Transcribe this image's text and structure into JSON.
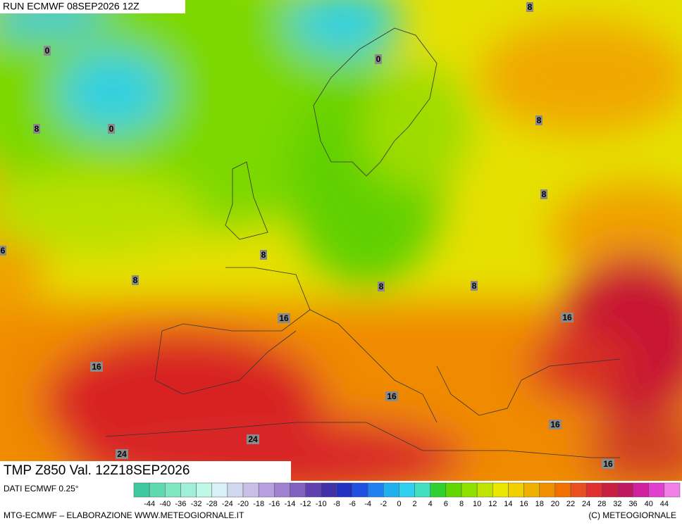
{
  "header": {
    "run": "RUN ECMWF 08SEP2026 12Z"
  },
  "title": "TMP Z850 Val. 12Z18SEP2026",
  "source": "DATI ECMWF 0.25°",
  "colorbar": {
    "labels": [
      -44,
      -40,
      -36,
      -32,
      -28,
      -24,
      -20,
      -18,
      -16,
      -14,
      -12,
      -10,
      -8,
      -6,
      -4,
      -2,
      0,
      2,
      4,
      6,
      8,
      10,
      12,
      14,
      16,
      18,
      20,
      22,
      24,
      28,
      32,
      36,
      40,
      44
    ]
  },
  "footer": {
    "left": "MTG-ECMWF – ELABORAZIONE WWW.METEOGIORNALE.IT",
    "right": "(C) METEOGIORNALE"
  },
  "map_labels": [
    8,
    0,
    0,
    8,
    0,
    8,
    8,
    6,
    8,
    8,
    8,
    8,
    16,
    16,
    16,
    16,
    16,
    24,
    24,
    16
  ]
}
